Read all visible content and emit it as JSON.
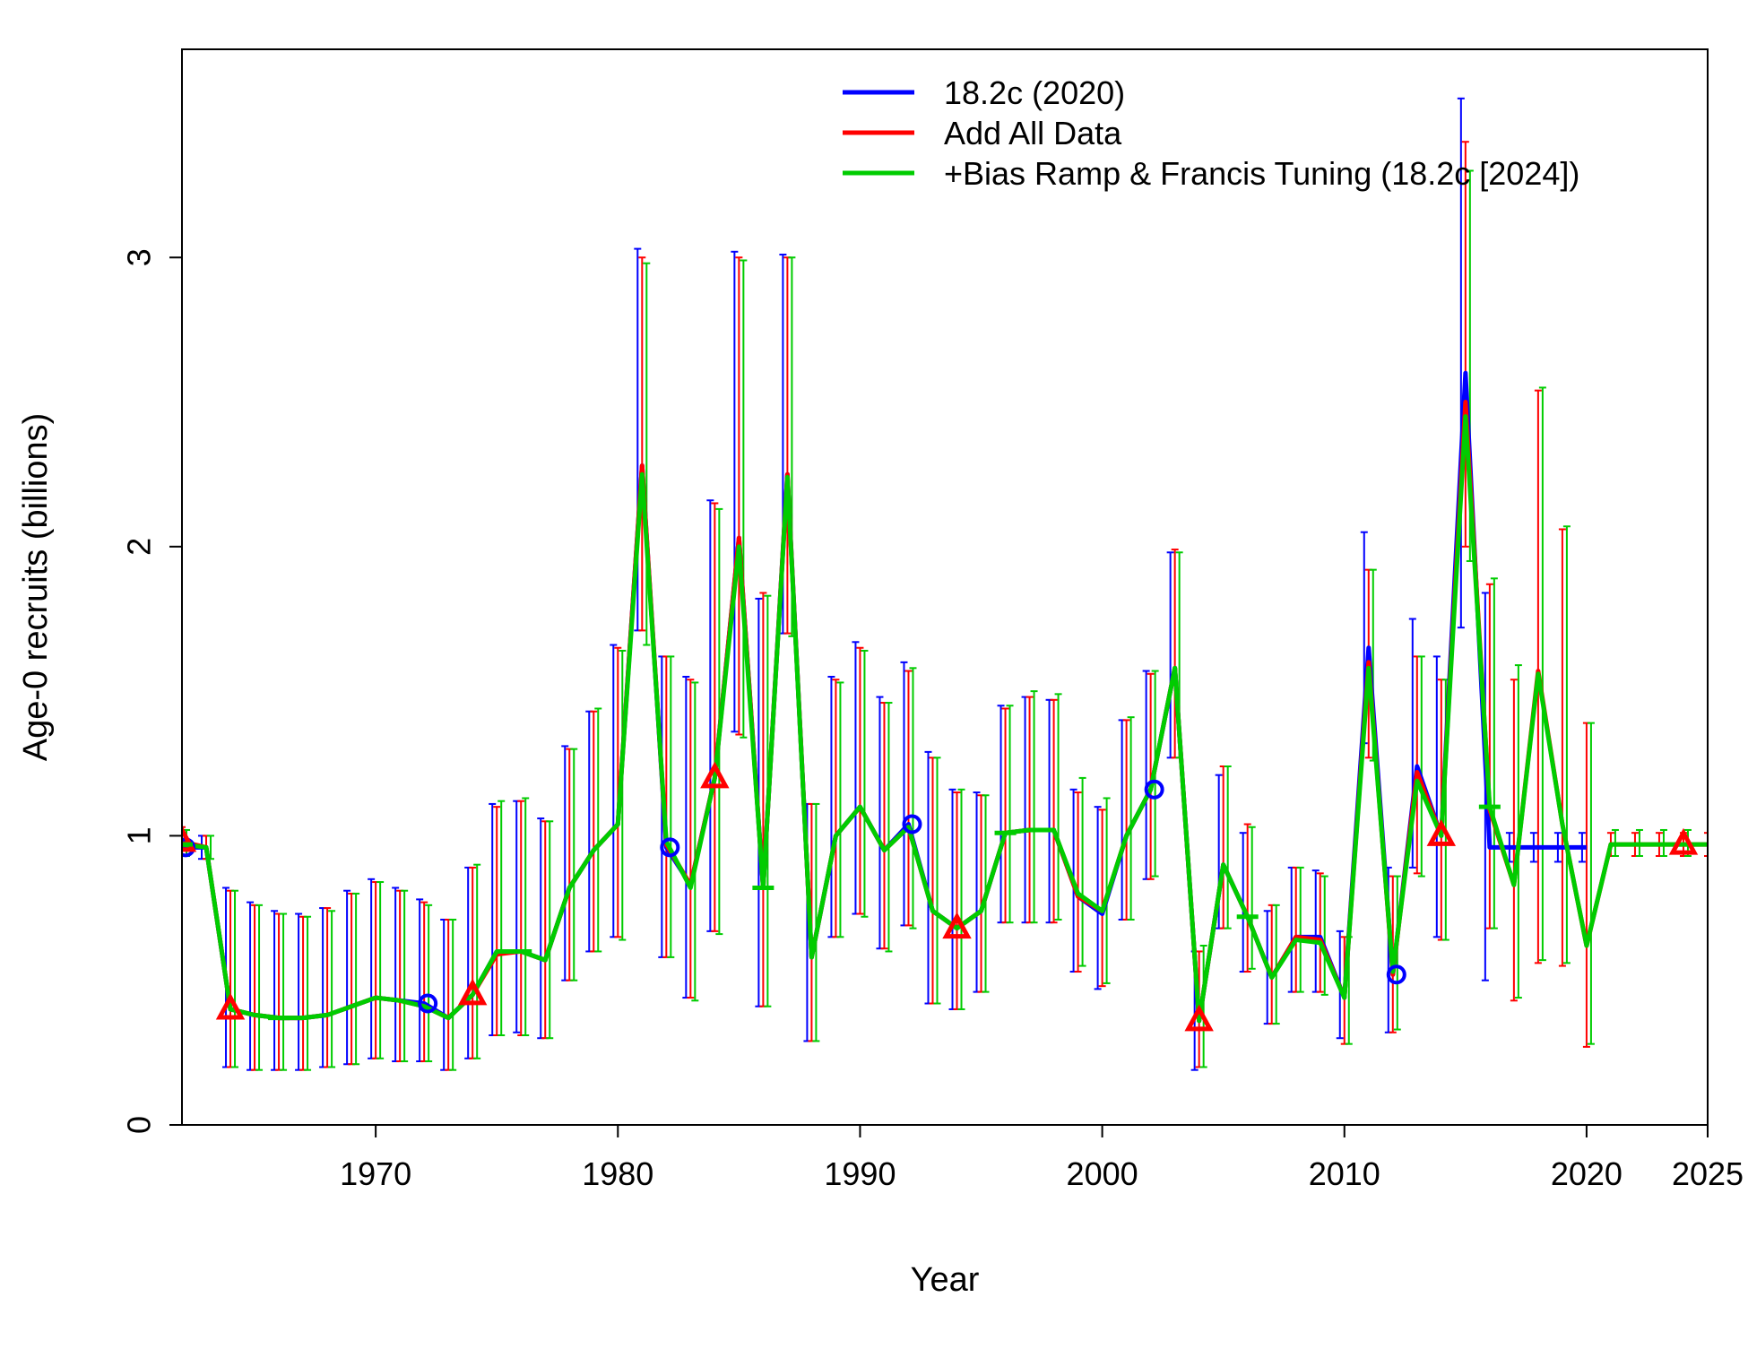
{
  "chart_data": {
    "type": "line",
    "xlabel": "Year",
    "ylabel": "Age-0 recruits (billions)",
    "xlim": [
      1962,
      2025
    ],
    "ylim": [
      0,
      3.72
    ],
    "x_ticks": [
      1970,
      1980,
      1990,
      2000,
      2010,
      2020,
      2025
    ],
    "y_ticks": [
      0,
      1,
      2,
      3
    ],
    "legend_position": "top-right",
    "series": [
      {
        "name": "18.2c (2020)",
        "color": "#0000ff",
        "marker": "circle",
        "x": [
          1962,
          1963,
          1964,
          1965,
          1966,
          1967,
          1968,
          1969,
          1970,
          1971,
          1972,
          1973,
          1974,
          1975,
          1976,
          1977,
          1978,
          1979,
          1980,
          1981,
          1982,
          1983,
          1984,
          1985,
          1986,
          1987,
          1988,
          1989,
          1990,
          1991,
          1992,
          1993,
          1994,
          1995,
          1996,
          1997,
          1998,
          1999,
          2000,
          2001,
          2002,
          2003,
          2004,
          2005,
          2006,
          2007,
          2008,
          2009,
          2010,
          2011,
          2012,
          2013,
          2014,
          2015,
          2016,
          2017,
          2018,
          2019,
          2020
        ],
        "y": [
          0.96,
          0.96,
          0.4,
          0.38,
          0.37,
          0.37,
          0.38,
          0.41,
          0.44,
          0.43,
          0.42,
          0.37,
          0.45,
          0.6,
          0.6,
          0.57,
          0.82,
          0.95,
          1.04,
          2.28,
          0.96,
          0.83,
          1.2,
          2.03,
          0.82,
          2.25,
          0.58,
          1.0,
          1.1,
          0.95,
          1.04,
          0.74,
          0.68,
          0.74,
          1.01,
          1.02,
          1.02,
          0.79,
          0.73,
          1.0,
          1.16,
          1.58,
          0.36,
          0.9,
          0.72,
          0.51,
          0.65,
          0.65,
          0.44,
          1.65,
          0.52,
          1.24,
          1.0,
          2.6,
          0.96,
          0.96,
          0.96,
          0.96,
          0.96
        ],
        "lower": [
          0.92,
          0.92,
          0.2,
          0.19,
          0.19,
          0.19,
          0.2,
          0.21,
          0.23,
          0.22,
          0.22,
          0.19,
          0.23,
          0.31,
          0.32,
          0.3,
          0.5,
          0.6,
          0.65,
          1.71,
          0.58,
          0.44,
          0.67,
          1.36,
          0.41,
          1.7,
          0.29,
          0.65,
          0.73,
          0.61,
          0.69,
          0.42,
          0.4,
          0.46,
          0.7,
          0.7,
          0.7,
          0.53,
          0.47,
          0.71,
          0.85,
          1.27,
          0.19,
          0.68,
          0.53,
          0.35,
          0.46,
          0.46,
          0.3,
          1.32,
          0.32,
          0.89,
          0.65,
          1.72,
          0.5,
          0.91,
          0.91,
          0.91,
          0.91
        ],
        "upper": [
          1.0,
          1.0,
          0.82,
          0.77,
          0.74,
          0.73,
          0.75,
          0.81,
          0.85,
          0.82,
          0.78,
          0.71,
          0.89,
          1.11,
          1.12,
          1.06,
          1.31,
          1.43,
          1.66,
          3.03,
          1.62,
          1.55,
          2.16,
          3.02,
          1.82,
          3.01,
          1.11,
          1.55,
          1.67,
          1.48,
          1.6,
          1.29,
          1.16,
          1.15,
          1.45,
          1.48,
          1.47,
          1.16,
          1.1,
          1.4,
          1.57,
          1.98,
          0.6,
          1.21,
          1.01,
          0.74,
          0.89,
          0.88,
          0.67,
          2.05,
          0.89,
          1.75,
          1.62,
          3.55,
          1.84,
          1.01,
          1.01,
          1.01,
          1.01
        ]
      },
      {
        "name": "Add All Data",
        "color": "#ff0000",
        "marker": "triangle",
        "x": [
          1962,
          1963,
          1964,
          1965,
          1966,
          1967,
          1968,
          1969,
          1970,
          1971,
          1972,
          1973,
          1974,
          1975,
          1976,
          1977,
          1978,
          1979,
          1980,
          1981,
          1982,
          1983,
          1984,
          1985,
          1986,
          1987,
          1988,
          1989,
          1990,
          1991,
          1992,
          1993,
          1994,
          1995,
          1996,
          1997,
          1998,
          1999,
          2000,
          2001,
          2002,
          2003,
          2004,
          2005,
          2006,
          2007,
          2008,
          2009,
          2010,
          2011,
          2012,
          2013,
          2014,
          2015,
          2016,
          2017,
          2018,
          2019,
          2020,
          2021,
          2022,
          2023,
          2024,
          2025
        ],
        "y": [
          0.98,
          0.96,
          0.4,
          0.38,
          0.37,
          0.37,
          0.38,
          0.41,
          0.44,
          0.43,
          0.41,
          0.37,
          0.45,
          0.59,
          0.6,
          0.57,
          0.82,
          0.95,
          1.04,
          2.28,
          0.97,
          0.83,
          1.2,
          2.03,
          0.82,
          2.25,
          0.58,
          1.0,
          1.1,
          0.95,
          1.03,
          0.74,
          0.68,
          0.74,
          1.01,
          1.02,
          1.02,
          0.79,
          0.74,
          1.0,
          1.16,
          1.58,
          0.36,
          0.9,
          0.72,
          0.51,
          0.65,
          0.64,
          0.44,
          1.6,
          0.52,
          1.22,
          1.0,
          2.5,
          1.09,
          0.83,
          1.57,
          1.04,
          0.62,
          0.97,
          0.97,
          0.97,
          0.97,
          0.97
        ],
        "lower": [
          0.93,
          0.92,
          0.2,
          0.19,
          0.19,
          0.19,
          0.2,
          0.21,
          0.23,
          0.22,
          0.22,
          0.19,
          0.23,
          0.31,
          0.31,
          0.3,
          0.5,
          0.6,
          0.65,
          1.71,
          0.58,
          0.44,
          0.67,
          1.35,
          0.41,
          1.7,
          0.29,
          0.65,
          0.73,
          0.61,
          0.69,
          0.42,
          0.4,
          0.46,
          0.7,
          0.7,
          0.7,
          0.53,
          0.48,
          0.71,
          0.85,
          1.27,
          0.2,
          0.68,
          0.53,
          0.35,
          0.46,
          0.46,
          0.28,
          1.27,
          0.32,
          0.87,
          0.64,
          2.0,
          0.68,
          0.43,
          0.56,
          0.55,
          0.27,
          0.93,
          0.93,
          0.93,
          0.93,
          0.93
        ],
        "upper": [
          1.03,
          1.0,
          0.81,
          0.76,
          0.73,
          0.72,
          0.75,
          0.8,
          0.84,
          0.81,
          0.77,
          0.71,
          0.89,
          1.1,
          1.12,
          1.05,
          1.3,
          1.43,
          1.65,
          3.0,
          1.62,
          1.54,
          2.15,
          3.0,
          1.84,
          3.0,
          1.11,
          1.54,
          1.65,
          1.46,
          1.57,
          1.27,
          1.15,
          1.14,
          1.44,
          1.48,
          1.47,
          1.15,
          1.09,
          1.4,
          1.56,
          1.99,
          0.6,
          1.24,
          1.04,
          0.76,
          0.89,
          0.87,
          0.65,
          1.92,
          0.86,
          1.62,
          1.54,
          3.4,
          1.87,
          1.54,
          2.54,
          2.06,
          1.39,
          1.01,
          1.01,
          1.01,
          1.01,
          1.01
        ]
      },
      {
        "name": "+Bias Ramp & Francis Tuning (18.2c [2024])",
        "color": "#00cc00",
        "marker": "dash",
        "x": [
          1962,
          1963,
          1964,
          1965,
          1966,
          1967,
          1968,
          1969,
          1970,
          1971,
          1972,
          1973,
          1974,
          1975,
          1976,
          1977,
          1978,
          1979,
          1980,
          1981,
          1982,
          1983,
          1984,
          1985,
          1986,
          1987,
          1988,
          1989,
          1990,
          1991,
          1992,
          1993,
          1994,
          1995,
          1996,
          1997,
          1998,
          1999,
          2000,
          2001,
          2002,
          2003,
          2004,
          2005,
          2006,
          2007,
          2008,
          2009,
          2010,
          2011,
          2012,
          2013,
          2014,
          2015,
          2016,
          2017,
          2018,
          2019,
          2020,
          2021,
          2022,
          2023,
          2024,
          2025
        ],
        "y": [
          0.97,
          0.96,
          0.4,
          0.38,
          0.37,
          0.37,
          0.38,
          0.41,
          0.44,
          0.43,
          0.41,
          0.37,
          0.45,
          0.6,
          0.6,
          0.57,
          0.82,
          0.95,
          1.04,
          2.25,
          0.98,
          0.82,
          1.2,
          2.0,
          0.82,
          2.24,
          0.58,
          1.0,
          1.1,
          0.95,
          1.03,
          0.74,
          0.68,
          0.74,
          1.01,
          1.02,
          1.02,
          0.8,
          0.74,
          1.0,
          1.16,
          1.58,
          0.36,
          0.9,
          0.72,
          0.51,
          0.64,
          0.63,
          0.44,
          1.58,
          0.53,
          1.19,
          1.0,
          2.45,
          1.1,
          0.83,
          1.56,
          1.04,
          0.62,
          0.97,
          0.97,
          0.97,
          0.97,
          0.97
        ],
        "lower": [
          0.93,
          0.92,
          0.2,
          0.19,
          0.19,
          0.19,
          0.2,
          0.21,
          0.23,
          0.22,
          0.22,
          0.19,
          0.23,
          0.31,
          0.31,
          0.3,
          0.5,
          0.6,
          0.64,
          1.66,
          0.58,
          0.43,
          0.66,
          1.34,
          0.41,
          1.69,
          0.29,
          0.65,
          0.72,
          0.6,
          0.68,
          0.42,
          0.4,
          0.46,
          0.7,
          0.7,
          0.71,
          0.55,
          0.49,
          0.71,
          0.86,
          1.27,
          0.2,
          0.68,
          0.54,
          0.35,
          0.46,
          0.45,
          0.28,
          1.26,
          0.33,
          0.86,
          0.64,
          1.95,
          0.68,
          0.44,
          0.57,
          0.56,
          0.28,
          0.93,
          0.93,
          0.93,
          0.93,
          0.93
        ],
        "upper": [
          1.02,
          1.0,
          0.81,
          0.76,
          0.73,
          0.72,
          0.74,
          0.8,
          0.84,
          0.81,
          0.76,
          0.71,
          0.9,
          1.12,
          1.13,
          1.05,
          1.3,
          1.44,
          1.64,
          2.98,
          1.62,
          1.53,
          2.13,
          2.99,
          1.83,
          3.0,
          1.11,
          1.53,
          1.64,
          1.46,
          1.58,
          1.27,
          1.16,
          1.14,
          1.45,
          1.5,
          1.49,
          1.2,
          1.13,
          1.41,
          1.57,
          1.98,
          0.62,
          1.24,
          1.03,
          0.76,
          0.89,
          0.86,
          0.65,
          1.92,
          0.86,
          1.62,
          1.54,
          3.3,
          1.89,
          1.59,
          2.55,
          2.07,
          1.39,
          1.02,
          1.02,
          1.02,
          1.02,
          1.02
        ]
      }
    ]
  }
}
